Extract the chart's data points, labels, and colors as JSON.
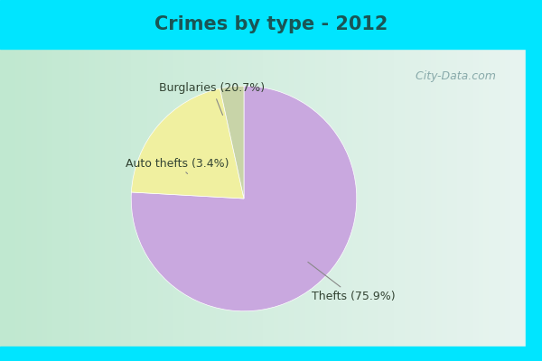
{
  "title": "Crimes by type - 2012",
  "slices": [
    {
      "label": "Thefts (75.9%)",
      "value": 75.9,
      "color": "#c9a8df"
    },
    {
      "label": "Burglaries (20.7%)",
      "value": 20.7,
      "color": "#f0f0a0"
    },
    {
      "label": "Auto thefts (3.4%)",
      "value": 3.4,
      "color": "#c8d4a8"
    }
  ],
  "title_color": "#1a5555",
  "title_fontsize": 15,
  "title_fontweight": "bold",
  "watermark": " City-Data.com",
  "watermark_color": "#88aaaa",
  "label_color": "#334433",
  "label_fontsize": 9,
  "startangle": 90,
  "cyan_color": "#00e5ff",
  "top_bar_height": 0.135,
  "bottom_bar_height": 0.04,
  "bg_left_color": "#c0e8d0",
  "bg_right_color": "#e8f4f0"
}
